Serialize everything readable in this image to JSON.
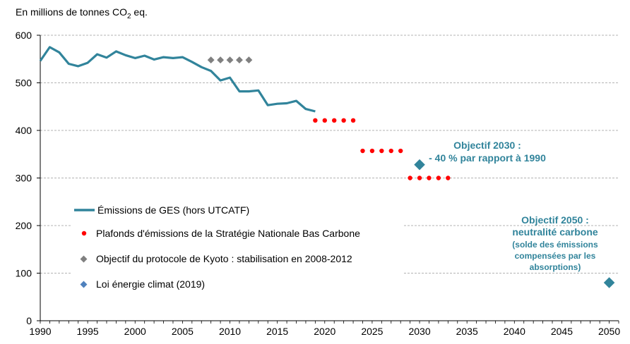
{
  "chart_data": {
    "type": "line",
    "unit_label": {
      "prefix": "En millions de tonnes  CO",
      "sub": "2",
      "suffix": " eq."
    },
    "xlim": [
      1990,
      2051
    ],
    "ylim": [
      0,
      600
    ],
    "x_ticks": [
      1990,
      1995,
      2000,
      2005,
      2010,
      2015,
      2020,
      2025,
      2030,
      2035,
      2040,
      2045,
      2050
    ],
    "y_ticks": [
      0,
      100,
      200,
      300,
      400,
      500,
      600
    ],
    "grid": "horizontal-dashed",
    "colors": {
      "emissions": "#31849b",
      "plafonds": "#ff0000",
      "kyoto": "#808080",
      "loi": "#4f81bd",
      "objectifs": "#31849b"
    },
    "series": [
      {
        "name": "Émissions de GES (hors UTCATF)",
        "style": "line",
        "x": [
          1990,
          1991,
          1992,
          1993,
          1994,
          1995,
          1996,
          1997,
          1998,
          1999,
          2000,
          2001,
          2002,
          2003,
          2004,
          2005,
          2006,
          2007,
          2008,
          2009,
          2010,
          2011,
          2012,
          2013,
          2014,
          2015,
          2016,
          2017,
          2018,
          2019
        ],
        "y": [
          546,
          575,
          564,
          540,
          535,
          542,
          560,
          553,
          566,
          558,
          552,
          557,
          549,
          554,
          552,
          554,
          544,
          533,
          525,
          505,
          511,
          482,
          482,
          484,
          453,
          456,
          457,
          462,
          445,
          440
        ]
      },
      {
        "name": "Plafonds d'émissions de la Stratégie Nationale Bas Carbone",
        "style": "dots",
        "x": [
          2019,
          2020,
          2021,
          2022,
          2023,
          2024,
          2025,
          2026,
          2027,
          2028,
          2029,
          2030,
          2031,
          2032,
          2033
        ],
        "y": [
          421,
          421,
          421,
          421,
          421,
          357,
          357,
          357,
          357,
          357,
          300,
          300,
          300,
          300,
          300
        ]
      },
      {
        "name": "Objectif du protocole de Kyoto : stabilisation en 2008-2012",
        "style": "diamonds",
        "x": [
          2008,
          2009,
          2010,
          2011,
          2012
        ],
        "y": [
          548,
          548,
          548,
          548,
          548
        ]
      },
      {
        "name": "Loi énergie climat (2019)",
        "style": "big-diamonds",
        "x": [
          2030,
          2050
        ],
        "y": [
          328,
          80
        ]
      }
    ],
    "annotations": [
      {
        "lines": [
          "Objectif 2030 :",
          "- 40 % par rapport à 1990"
        ]
      },
      {
        "lines": [
          "Objectif 2050 :",
          "neutralité carbone"
        ],
        "sub_lines": [
          "(solde des émissions",
          "compensées par les",
          "absorptions)"
        ]
      }
    ]
  }
}
